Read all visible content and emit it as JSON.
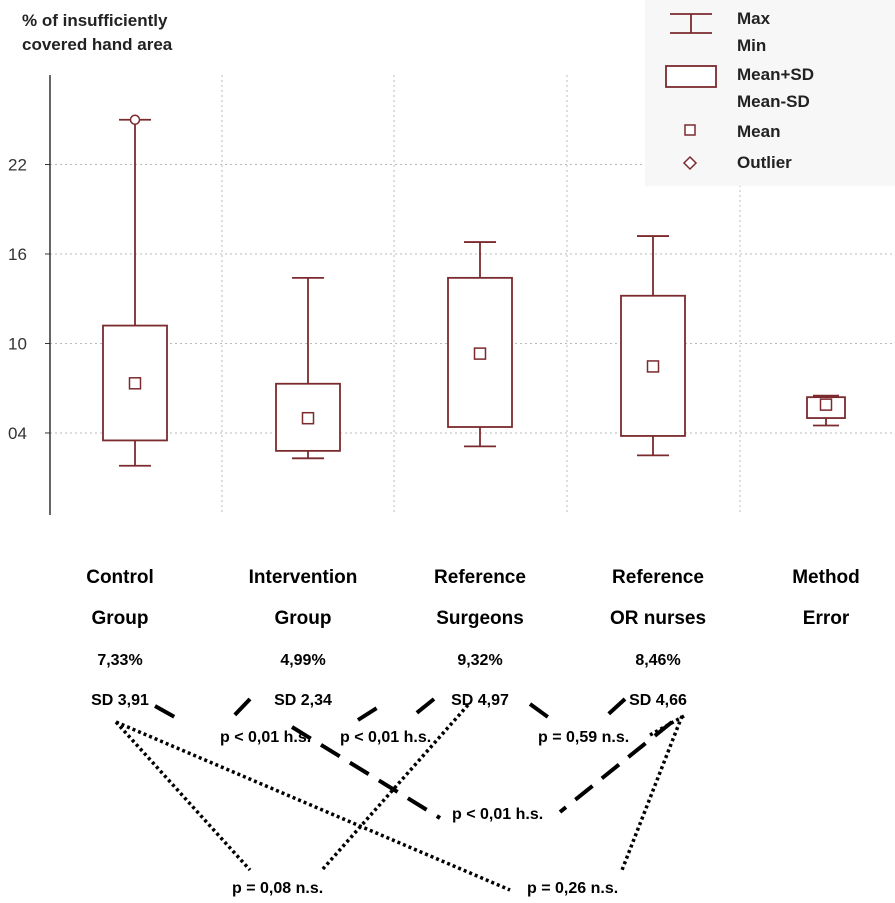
{
  "chart_data": {
    "type": "box",
    "ylabel_line1": "% of insufficiently",
    "ylabel_line2": "covered hand area",
    "ylim": [
      -1.5,
      28
    ],
    "yticks": [
      {
        "value": 4,
        "label": "04"
      },
      {
        "value": 10,
        "label": "10"
      },
      {
        "value": 16,
        "label": "16"
      },
      {
        "value": 22,
        "label": "22"
      }
    ],
    "grid": true,
    "legend_position": "top-right",
    "legend": {
      "whisker_top": "Max",
      "whisker_bottom": "Min",
      "box_top": "Mean+SD",
      "box_bottom": "Mean-SD",
      "mean": "Mean",
      "outlier": "Outlier"
    },
    "color": "#7b2a2e",
    "groups": [
      {
        "line1": "Control",
        "line2": "Group",
        "mean_label": "7,33%",
        "sd_label": "SD 3,91",
        "min": 1.8,
        "max": 25.0,
        "mean": 7.33,
        "sd_low": 3.5,
        "sd_high": 11.2,
        "outlier": 25.0
      },
      {
        "line1": "Intervention",
        "line2": "Group",
        "mean_label": "4,99%",
        "sd_label": "SD 2,34",
        "min": 2.3,
        "max": 14.4,
        "mean": 4.99,
        "sd_low": 2.8,
        "sd_high": 7.3,
        "outlier": null
      },
      {
        "line1": "Reference",
        "line2": "Surgeons",
        "mean_label": "9,32%",
        "sd_label": "SD 4,97",
        "min": 3.1,
        "max": 16.8,
        "mean": 9.32,
        "sd_low": 4.4,
        "sd_high": 14.4,
        "outlier": null
      },
      {
        "line1": "Reference",
        "line2": "OR nurses",
        "mean_label": "8,46%",
        "sd_label": "SD 4,66",
        "min": 2.5,
        "max": 17.2,
        "mean": 8.46,
        "sd_low": 3.8,
        "sd_high": 13.2,
        "outlier": null
      },
      {
        "line1": "Method",
        "line2": "Error",
        "mean_label": "",
        "sd_label": "",
        "min": 4.5,
        "max": 6.5,
        "mean": 5.9,
        "sd_low": 5.0,
        "sd_high": 6.4,
        "outlier": null
      }
    ],
    "comparisons": [
      {
        "label": "p < 0,01 h.s."
      },
      {
        "label": "p < 0,01 h.s."
      },
      {
        "label": "p = 0,59 n.s."
      },
      {
        "label": "p < 0,01 h.s."
      },
      {
        "label": "p = 0,08 n.s."
      },
      {
        "label": "p = 0,26 n.s."
      }
    ]
  }
}
